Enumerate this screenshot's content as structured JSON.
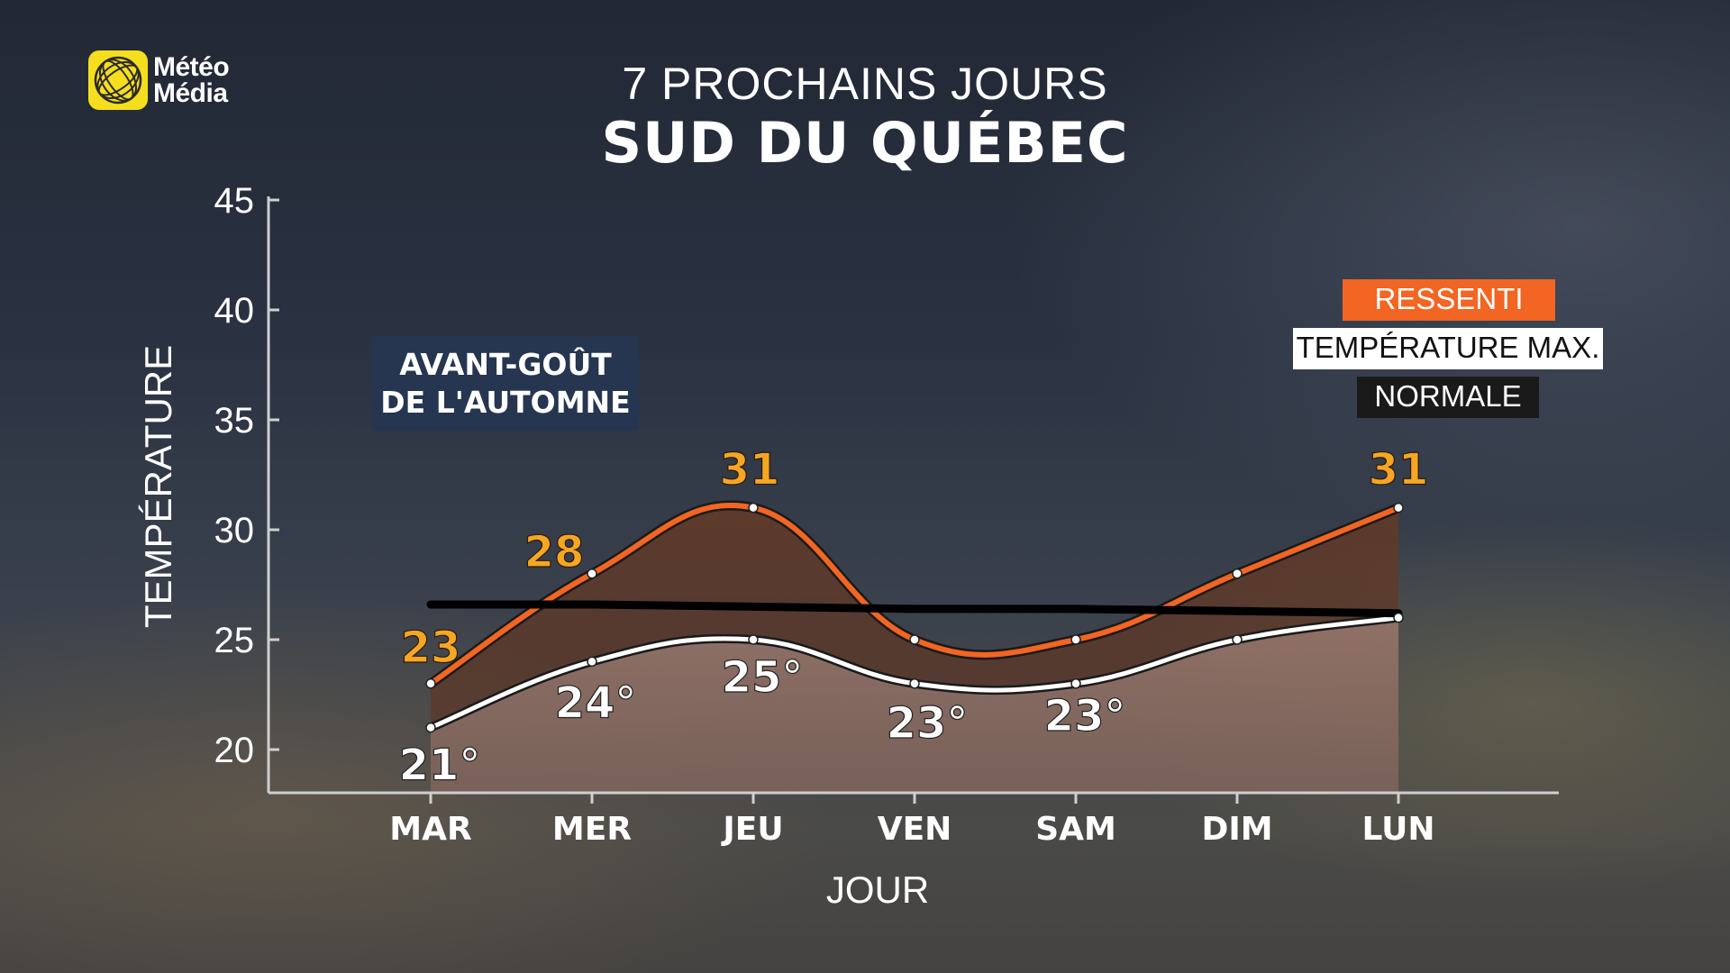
{
  "header": {
    "logo_text_line1": "Météo",
    "logo_text_line2": "Média",
    "title_line1": "7 PROCHAINS JOURS",
    "title_line2": "SUD DU QUÉBEC"
  },
  "annotation": {
    "line1": "AVANT-GOÛT",
    "line2": "DE L'AUTOMNE"
  },
  "legend": {
    "ressenti": "RESSENTI",
    "temp_max": "TEMPÉRATURE MAX.",
    "normale": "NORMALE"
  },
  "colors": {
    "ressenti": "#f26522",
    "ressenti_label": "#f5a623",
    "temp_max": "#ffffff",
    "normale": "#000000",
    "logo": "#f5de1e"
  },
  "chart_data": {
    "type": "line",
    "xlabel": "JOUR",
    "ylabel": "TEMPÉRATURE",
    "ylim": [
      18,
      45
    ],
    "yticks": [
      20,
      25,
      30,
      35,
      40,
      45
    ],
    "categories": [
      "MAR",
      "MER",
      "JEU",
      "VEN",
      "SAM",
      "DIM",
      "LUN"
    ],
    "series": [
      {
        "name": "RESSENTI",
        "values": [
          23,
          28,
          31,
          25,
          25,
          28,
          31
        ],
        "labels": [
          "23",
          "28",
          "31",
          "",
          "",
          "",
          "31"
        ]
      },
      {
        "name": "TEMPÉRATURE MAX.",
        "values": [
          21,
          24,
          25,
          23,
          23,
          25,
          26
        ],
        "labels": [
          "21°",
          "24°",
          "25°",
          "23°",
          "23°",
          "",
          ""
        ]
      },
      {
        "name": "NORMALE",
        "values": [
          26.6,
          26.6,
          26.5,
          26.4,
          26.4,
          26.3,
          26.2
        ]
      }
    ]
  }
}
